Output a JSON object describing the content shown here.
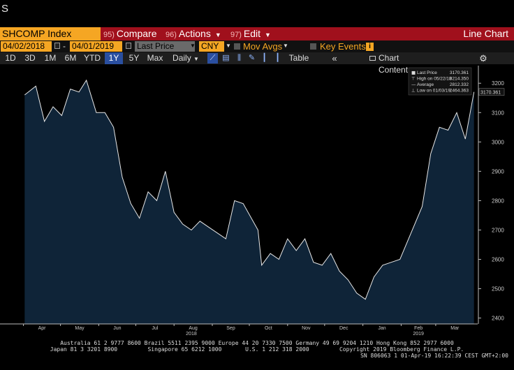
{
  "cursor_text": "S",
  "toolbar": {
    "ticker": "SHCOMP Index",
    "compare": {
      "num": "95)",
      "label": "Compare"
    },
    "actions": {
      "num": "96)",
      "label": "Actions"
    },
    "edit": {
      "num": "97)",
      "label": "Edit"
    },
    "view_title": "Line Chart"
  },
  "range": {
    "start_date": "04/02/2018",
    "separator": "-",
    "end_date": "04/01/2019",
    "field": "Last Price",
    "currency": "CNY",
    "mov_avgs": "Mov Avgs",
    "key_events": "Key Events",
    "key_events_badge": "i"
  },
  "periods": [
    "1D",
    "3D",
    "1M",
    "6M",
    "YTD",
    "1Y",
    "5Y",
    "Max"
  ],
  "selected_period": "1Y",
  "frequency": "Daily",
  "table_label": "Table",
  "chart_content_label": "Chart Content",
  "legend": {
    "rows": [
      {
        "label": "Last Price",
        "value": "3170.361"
      },
      {
        "label": "High on 05/22/18",
        "value": "3214.350"
      },
      {
        "label": "Average",
        "value": "2812.332"
      },
      {
        "label": "Low on 01/03/19",
        "value": "2464.363"
      }
    ]
  },
  "last_price_tag": "3170.361",
  "colors": {
    "area_fill": "#0f2438",
    "line": "#e8e8e8",
    "accent_orange": "#f5a623",
    "command_red": "#a0101c"
  },
  "chart_data": {
    "type": "area",
    "series": [
      {
        "name": "Last Price",
        "x": [
          "2018-04-02",
          "2018-04-11",
          "2018-04-18",
          "2018-04-25",
          "2018-05-02",
          "2018-05-09",
          "2018-05-16",
          "2018-05-22",
          "2018-05-30",
          "2018-06-06",
          "2018-06-13",
          "2018-06-20",
          "2018-06-27",
          "2018-07-04",
          "2018-07-11",
          "2018-07-18",
          "2018-07-25",
          "2018-08-01",
          "2018-08-08",
          "2018-08-15",
          "2018-08-22",
          "2018-08-29",
          "2018-09-05",
          "2018-09-12",
          "2018-09-19",
          "2018-09-26",
          "2018-10-08",
          "2018-10-11",
          "2018-10-18",
          "2018-10-25",
          "2018-11-01",
          "2018-11-08",
          "2018-11-15",
          "2018-11-22",
          "2018-11-29",
          "2018-12-06",
          "2018-12-13",
          "2018-12-20",
          "2018-12-27",
          "2019-01-03",
          "2019-01-10",
          "2019-01-17",
          "2019-01-24",
          "2019-01-31",
          "2019-02-11",
          "2019-02-18",
          "2019-02-25",
          "2019-03-04",
          "2019-03-11",
          "2019-03-18",
          "2019-03-25",
          "2019-04-01"
        ],
        "values": [
          3160,
          3190,
          3070,
          3120,
          3090,
          3180,
          3170,
          3210,
          3100,
          3100,
          3050,
          2880,
          2790,
          2740,
          2830,
          2800,
          2900,
          2760,
          2720,
          2700,
          2730,
          2710,
          2690,
          2670,
          2800,
          2790,
          2700,
          2580,
          2620,
          2600,
          2670,
          2630,
          2670,
          2590,
          2580,
          2620,
          2560,
          2530,
          2485,
          2464,
          2540,
          2580,
          2590,
          2600,
          2710,
          2780,
          2960,
          3050,
          3040,
          3100,
          3010,
          3170.361
        ]
      }
    ],
    "x_tick_labels": [
      "Apr",
      "May",
      "Jun",
      "Jul",
      "Aug",
      "Sep",
      "Oct",
      "Nov",
      "Dec",
      "Jan",
      "Feb",
      "Mar"
    ],
    "x_year_labels": [
      "2018",
      "2019"
    ],
    "y_ticks": [
      2400,
      2500,
      2600,
      2700,
      2800,
      2900,
      3000,
      3100,
      3200
    ],
    "ylim": [
      2380,
      3260
    ],
    "grid": false
  },
  "footer": {
    "line1": "Australia 61 2 9777 8600 Brazil 5511 2395 9000 Europe 44 20 7330 7500 Germany 49 69 9204 1210 Hong Kong 852 2977 6000",
    "line2": "Japan 81 3 3201 8900         Singapore 65 6212 1000       U.S. 1 212 318 2000         Copyright 2019 Bloomberg Finance L.P.",
    "line3": "SN 806063 1 01-Apr-19 16:22:39 CEST GMT+2:00"
  }
}
